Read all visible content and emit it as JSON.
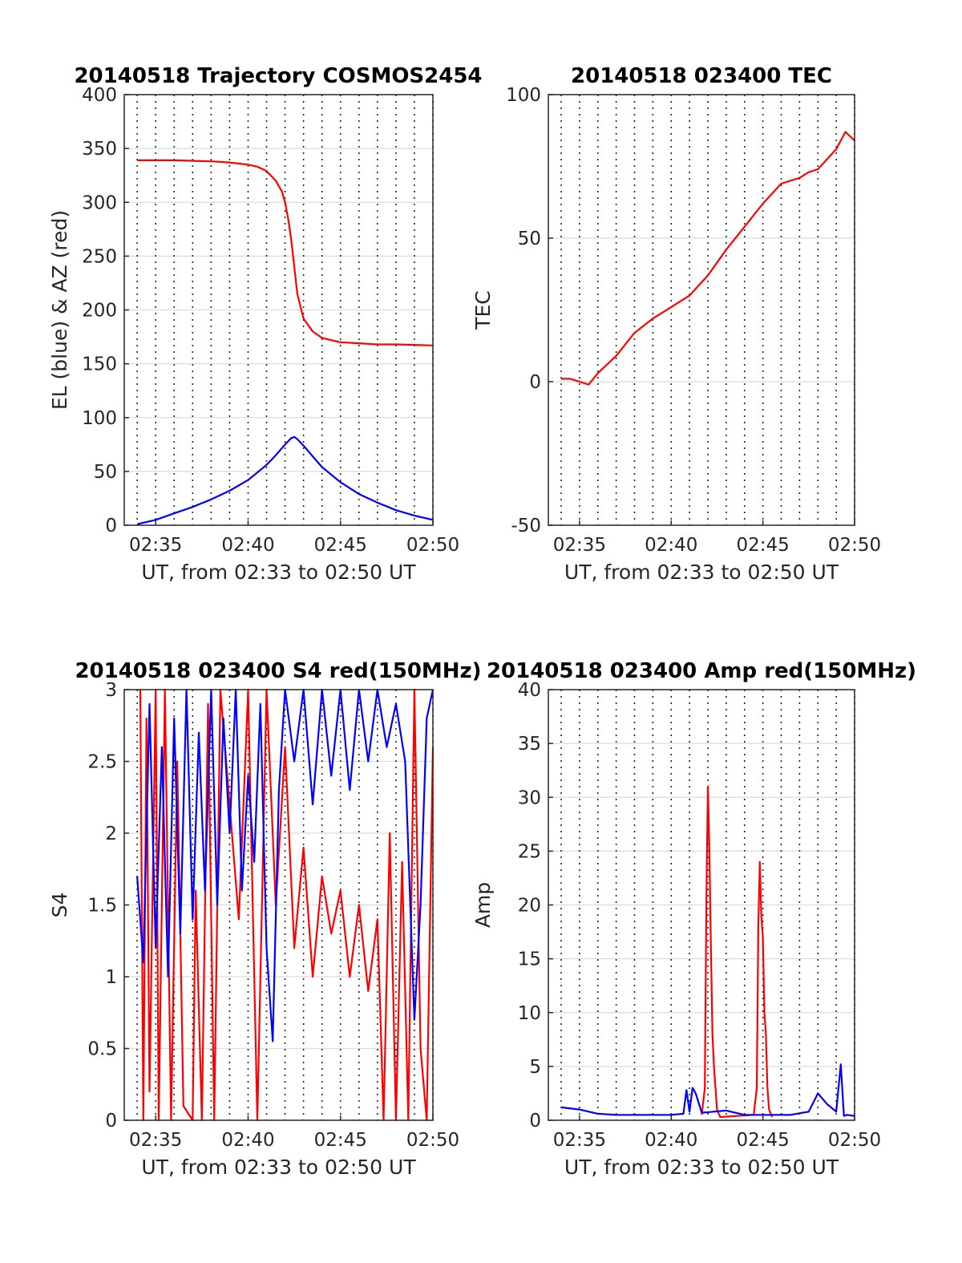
{
  "figure": {
    "panels": [
      {
        "title": "20140518 Trajectory COSMOS2454",
        "xlabel": "UT, from 02:33 to 02:50 UT",
        "ylabel": "EL (blue) & AZ (red)"
      },
      {
        "title": "20140518 023400 TEC",
        "xlabel": "UT, from 02:33 to 02:50 UT",
        "ylabel": "TEC"
      },
      {
        "title": "20140518 023400 S4 red(150MHz)",
        "xlabel": "UT, from 02:33 to 02:50 UT",
        "ylabel": "S4"
      },
      {
        "title": "20140518 023400 Amp red(150MHz)",
        "xlabel": "UT, from 02:33 to 02:50 UT",
        "ylabel": "Amp"
      }
    ]
  },
  "chart_data": [
    {
      "type": "line",
      "title": "20140518 Trajectory COSMOS2454",
      "xlabel": "UT, from 02:33 to 02:50 UT",
      "ylabel": "EL (blue) & AZ (red)",
      "x_unit": "UT time (HH:MM)",
      "xlim": [
        "02:33:18",
        "02:50"
      ],
      "ylim": [
        0,
        400
      ],
      "xticks": [
        "02:35",
        "02:40",
        "02:45",
        "02:50"
      ],
      "yticks": [
        0,
        50,
        100,
        150,
        200,
        250,
        300,
        350,
        400
      ],
      "grid": "horizontal solid, vertical dotted every minute",
      "series": [
        {
          "color": "#ff0000",
          "x": [
            "02:34",
            "02:36",
            "02:38",
            "02:39",
            "02:40",
            "02:40:30",
            "02:41",
            "02:41:30",
            "02:41:50",
            "02:42",
            "02:42:10",
            "02:42:20",
            "02:42:30",
            "02:42:40",
            "02:43",
            "02:43:30",
            "02:44",
            "02:45",
            "02:46",
            "02:47",
            "02:48",
            "02:50"
          ],
          "values": [
            339,
            339,
            338,
            337,
            335,
            333,
            329,
            320,
            310,
            300,
            285,
            265,
            240,
            215,
            192,
            180,
            174,
            170,
            169,
            168,
            168,
            167
          ]
        },
        {
          "color": "#0000ff",
          "x": [
            "02:34",
            "02:35",
            "02:36",
            "02:37",
            "02:38",
            "02:39",
            "02:40",
            "02:41",
            "02:41:30",
            "02:42",
            "02:42:20",
            "02:42:30",
            "02:42:40",
            "02:43",
            "02:43:30",
            "02:44",
            "02:45",
            "02:46",
            "02:47",
            "02:48",
            "02:49",
            "02:50"
          ],
          "values": [
            1,
            5,
            11,
            17,
            24,
            32,
            42,
            56,
            65,
            75,
            81,
            82,
            80,
            74,
            64,
            54,
            40,
            29,
            21,
            14,
            9,
            5
          ]
        }
      ]
    },
    {
      "type": "line",
      "title": "20140518 023400 TEC",
      "xlabel": "UT, from 02:33 to 02:50 UT",
      "ylabel": "TEC",
      "x_unit": "UT time (HH:MM)",
      "xlim": [
        "02:33:18",
        "02:50"
      ],
      "ylim": [
        -50,
        100
      ],
      "xticks": [
        "02:35",
        "02:40",
        "02:45",
        "02:50"
      ],
      "yticks": [
        -50,
        0,
        50,
        100
      ],
      "grid": "horizontal solid, vertical dotted every minute",
      "series": [
        {
          "color": "#ff0000",
          "x": [
            "02:34",
            "02:34:30",
            "02:35",
            "02:35:30",
            "02:36",
            "02:37",
            "02:38",
            "02:39",
            "02:40",
            "02:41",
            "02:42",
            "02:43",
            "02:44",
            "02:45",
            "02:46",
            "02:47",
            "02:47:30",
            "02:48",
            "02:49",
            "02:49:30",
            "02:50"
          ],
          "values": [
            1,
            1,
            0,
            -1,
            3,
            9,
            17,
            22,
            26,
            30,
            37,
            46,
            54,
            62,
            69,
            71,
            73,
            74,
            81,
            87,
            84
          ]
        }
      ]
    },
    {
      "type": "line",
      "title": "20140518 023400 S4 red(150MHz)",
      "xlabel": "UT, from 02:33 to 02:50 UT",
      "ylabel": "S4",
      "x_unit": "UT time (HH:MM)",
      "xlim": [
        "02:33:18",
        "02:50"
      ],
      "ylim": [
        0,
        3
      ],
      "xticks": [
        "02:35",
        "02:40",
        "02:45",
        "02:50"
      ],
      "yticks": [
        0,
        0.5,
        1,
        1.5,
        2,
        2.5,
        3
      ],
      "grid": "horizontal solid, vertical dotted every minute",
      "series": [
        {
          "color": "#ff0000",
          "x": [
            "02:34:10",
            "02:34:20",
            "02:34:30",
            "02:34:40",
            "02:35:00",
            "02:35:10",
            "02:35:30",
            "02:35:50",
            "02:36:10",
            "02:36:30",
            "02:37:00",
            "02:37:10",
            "02:37:30",
            "02:37:50",
            "02:38:10",
            "02:38:30",
            "02:39:00",
            "02:39:30",
            "02:40:00",
            "02:40:30",
            "02:41:00",
            "02:41:30",
            "02:42:00",
            "02:42:30",
            "02:43:00",
            "02:43:30",
            "02:44:00",
            "02:44:30",
            "02:45:00",
            "02:45:30",
            "02:46:00",
            "02:46:30",
            "02:47:00",
            "02:47:20",
            "02:47:40",
            "02:48:00",
            "02:48:20",
            "02:48:40",
            "02:49:00",
            "02:49:20",
            "02:49:40",
            "02:50:00"
          ],
          "values": [
            3,
            0,
            2.8,
            0.2,
            3,
            0,
            3,
            0,
            2.5,
            0.1,
            0,
            1.6,
            0,
            2.9,
            0,
            3,
            2.2,
            1.4,
            3,
            0,
            3,
            1.5,
            2.6,
            1.2,
            1.9,
            1.0,
            1.7,
            1.3,
            1.6,
            1.0,
            1.5,
            0.9,
            1.4,
            0,
            2.0,
            0,
            1.8,
            0,
            3,
            0.5,
            0,
            2.6
          ]
        },
        {
          "color": "#0000ff",
          "x": [
            "02:34:00",
            "02:34:20",
            "02:34:40",
            "02:35:00",
            "02:35:20",
            "02:35:40",
            "02:36:00",
            "02:36:20",
            "02:36:40",
            "02:37:00",
            "02:37:20",
            "02:37:40",
            "02:38:00",
            "02:38:20",
            "02:38:40",
            "02:39:00",
            "02:39:20",
            "02:39:40",
            "02:40:00",
            "02:40:20",
            "02:40:40",
            "02:41:00",
            "02:41:20",
            "02:41:40",
            "02:42:00",
            "02:42:30",
            "02:43:00",
            "02:43:30",
            "02:44:00",
            "02:44:30",
            "02:45:00",
            "02:45:30",
            "02:46:00",
            "02:46:30",
            "02:47:00",
            "02:47:30",
            "02:48:00",
            "02:48:30",
            "02:49:00",
            "02:49:20",
            "02:49:40",
            "02:50:00"
          ],
          "values": [
            1.7,
            1.1,
            2.9,
            1.2,
            2.6,
            1.0,
            2.8,
            1.3,
            3,
            1.4,
            2.7,
            1.6,
            3,
            1.5,
            2.8,
            2.0,
            3,
            1.6,
            2.4,
            1.8,
            2.9,
            1.2,
            0.55,
            2.3,
            3,
            2.5,
            3,
            2.2,
            3,
            2.4,
            3,
            2.3,
            3,
            2.5,
            3,
            2.6,
            2.9,
            2.5,
            0.7,
            1.5,
            2.8,
            3
          ]
        }
      ]
    },
    {
      "type": "line",
      "title": "20140518 023400 Amp red(150MHz)",
      "xlabel": "UT, from 02:33 to 02:50 UT",
      "ylabel": "Amp",
      "x_unit": "UT time (HH:MM)",
      "xlim": [
        "02:33:18",
        "02:50"
      ],
      "ylim": [
        0,
        40
      ],
      "xticks": [
        "02:35",
        "02:40",
        "02:45",
        "02:50"
      ],
      "yticks": [
        0,
        5,
        10,
        15,
        20,
        25,
        30,
        35,
        40
      ],
      "grid": "horizontal solid, vertical dotted every minute",
      "series": [
        {
          "color": "#ff0000",
          "x": [
            "02:41:40",
            "02:41:50",
            "02:41:55",
            "02:42:00",
            "02:42:05",
            "02:42:10",
            "02:42:15",
            "02:42:20",
            "02:42:25",
            "02:42:30",
            "02:42:40",
            "02:44:30",
            "02:44:40",
            "02:44:45",
            "02:44:50",
            "02:44:55",
            "02:45:00",
            "02:45:05",
            "02:45:10",
            "02:45:15",
            "02:45:20",
            "02:45:30"
          ],
          "values": [
            0.5,
            3,
            20,
            31,
            25,
            16,
            8,
            5,
            3,
            1,
            0.3,
            0.5,
            3,
            18,
            24,
            19,
            17,
            10,
            8,
            3,
            1,
            0.3
          ]
        },
        {
          "color": "#0000ff",
          "x": [
            "02:34:00",
            "02:35:00",
            "02:36:00",
            "02:37:00",
            "02:38:00",
            "02:39:00",
            "02:40:00",
            "02:40:40",
            "02:40:50",
            "02:41:00",
            "02:41:10",
            "02:41:20",
            "02:41:40",
            "02:43:00",
            "02:44:00",
            "02:45:30",
            "02:46:30",
            "02:47:30",
            "02:48:00",
            "02:48:30",
            "02:49:00",
            "02:49:15",
            "02:49:25",
            "02:49:35",
            "02:50:00"
          ],
          "values": [
            1.2,
            1.0,
            0.6,
            0.5,
            0.5,
            0.5,
            0.5,
            0.6,
            2.8,
            0.8,
            3.0,
            2.5,
            0.7,
            0.9,
            0.5,
            0.5,
            0.5,
            0.8,
            2.5,
            1.5,
            0.8,
            5.2,
            0.4,
            0.5,
            0.4
          ]
        }
      ]
    }
  ]
}
